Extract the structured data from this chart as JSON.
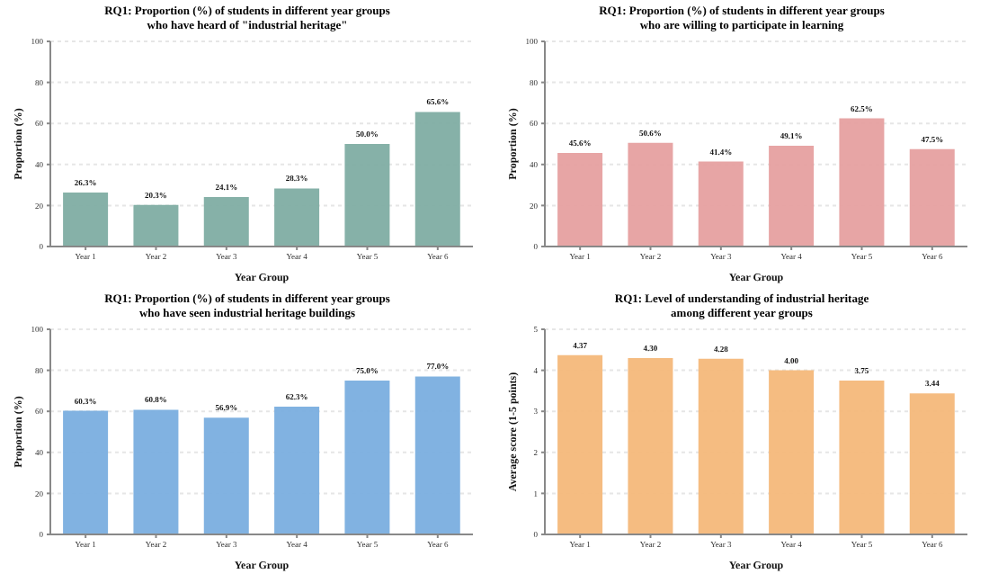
{
  "chart_data": [
    {
      "type": "bar",
      "title": "RQ1: Proportion (%) of students in different year groups\nwho have heard of \"industrial heritage\"",
      "xlabel": "Year Group",
      "ylabel": "Proportion (%)",
      "categories": [
        "Year 1",
        "Year 2",
        "Year 3",
        "Year 4",
        "Year 5",
        "Year 6"
      ],
      "values": [
        26.3,
        20.3,
        24.1,
        28.3,
        50.0,
        65.6
      ],
      "value_labels": [
        "26.3%",
        "20.3%",
        "24.1%",
        "28.3%",
        "50.0%",
        "65.6%"
      ],
      "color": "#7fada3",
      "ylim": [
        0,
        100
      ],
      "yticks": [
        0,
        20,
        40,
        60,
        80,
        100
      ],
      "grid": "y"
    },
    {
      "type": "bar",
      "title": "RQ1: Proportion (%) of students in different year groups\nwho are willing to participate in learning",
      "xlabel": "Year Group",
      "ylabel": "Proportion (%)",
      "categories": [
        "Year 1",
        "Year 2",
        "Year 3",
        "Year 4",
        "Year 5",
        "Year 6"
      ],
      "values": [
        45.6,
        50.6,
        41.4,
        49.1,
        62.5,
        47.5
      ],
      "value_labels": [
        "45.6%",
        "50.6%",
        "41.4%",
        "49.1%",
        "62.5%",
        "47.5%"
      ],
      "color": "#e6a0a0",
      "ylim": [
        0,
        100
      ],
      "yticks": [
        0,
        20,
        40,
        60,
        80,
        100
      ],
      "grid": "y"
    },
    {
      "type": "bar",
      "title": "RQ1: Proportion (%) of students in different year groups\nwho have seen industrial heritage buildings",
      "xlabel": "Year Group",
      "ylabel": "Proportion (%)",
      "categories": [
        "Year 1",
        "Year 2",
        "Year 3",
        "Year 4",
        "Year 5",
        "Year 6"
      ],
      "values": [
        60.3,
        60.8,
        56.9,
        62.3,
        75.0,
        77.0
      ],
      "value_labels": [
        "60.3%",
        "60.8%",
        "56.9%",
        "62.3%",
        "75.0%",
        "77.0%"
      ],
      "color": "#7aaedf",
      "ylim": [
        0,
        100
      ],
      "yticks": [
        0,
        20,
        40,
        60,
        80,
        100
      ],
      "grid": "y"
    },
    {
      "type": "bar",
      "title": "RQ1: Level of understanding of industrial heritage\namong different year groups",
      "xlabel": "Year Group",
      "ylabel": "Average score (1-5 points)",
      "categories": [
        "Year 1",
        "Year 2",
        "Year 3",
        "Year 4",
        "Year 5",
        "Year 6"
      ],
      "values": [
        4.37,
        4.3,
        4.28,
        4.0,
        3.75,
        3.44
      ],
      "value_labels": [
        "4.37",
        "4.30",
        "4.28",
        "4.00",
        "3.75",
        "3.44"
      ],
      "color": "#f4b87a",
      "ylim": [
        0,
        5
      ],
      "yticks": [
        0,
        1,
        2,
        3,
        4,
        5
      ],
      "grid": "y"
    }
  ]
}
